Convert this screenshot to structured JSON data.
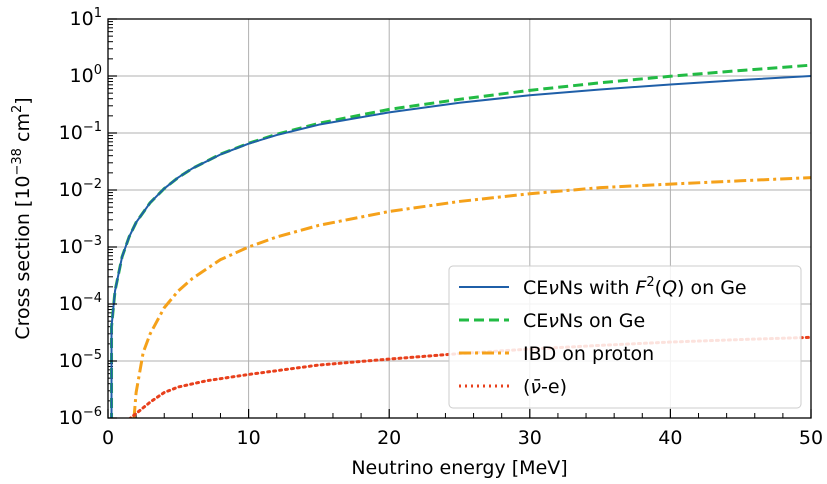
{
  "chart_data": {
    "type": "line",
    "xlabel": "Neutrino energy [MeV]",
    "ylabel": {
      "main": "Cross section [10",
      "exp": "−38",
      "unit": " cm",
      "unit_exp": "2",
      "close": "]"
    },
    "xlim": [
      0,
      50
    ],
    "ylim": [
      1e-06,
      10
    ],
    "yscale": "log",
    "grid": true,
    "legend_position": "lower-right",
    "x_ticks": [
      "0",
      "10",
      "20",
      "30",
      "40",
      "50"
    ],
    "y_ticks": [
      {
        "base": "10",
        "exp": "1"
      },
      {
        "base": "10",
        "exp": "0"
      },
      {
        "base": "10",
        "exp": "−1"
      },
      {
        "base": "10",
        "exp": "−2"
      },
      {
        "base": "10",
        "exp": "−3"
      },
      {
        "base": "10",
        "exp": "−4"
      },
      {
        "base": "10",
        "exp": "−5"
      },
      {
        "base": "10",
        "exp": "−6"
      }
    ],
    "series": [
      {
        "legend": [
          "CE",
          "ν",
          "Ns with ",
          "F",
          "2",
          "(",
          "Q",
          ") on Ge"
        ],
        "color": "#1f5fa8",
        "style": "solid",
        "x": [
          0.25,
          0.5,
          1,
          1.5,
          2,
          3,
          4,
          5,
          6,
          8,
          10,
          12,
          15,
          20,
          25,
          30,
          35,
          40,
          45,
          50
        ],
        "y": [
          4e-05,
          0.00017,
          0.00067,
          0.0015,
          0.0027,
          0.006,
          0.0106,
          0.0166,
          0.0239,
          0.042,
          0.065,
          0.092,
          0.14,
          0.23,
          0.34,
          0.46,
          0.58,
          0.71,
          0.85,
          1.0
        ]
      },
      {
        "legend": [
          "CE",
          "ν",
          "Ns on Ge"
        ],
        "color": "#22bb44",
        "style": "dashed",
        "x": [
          0.25,
          0.5,
          1,
          1.5,
          2,
          3,
          4,
          5,
          6,
          8,
          10,
          12,
          15,
          20,
          25,
          30,
          35,
          40,
          45,
          50
        ],
        "y": [
          4e-05,
          0.00017,
          0.00067,
          0.0015,
          0.0027,
          0.006,
          0.0106,
          0.0166,
          0.0239,
          0.0425,
          0.066,
          0.095,
          0.148,
          0.26,
          0.39,
          0.56,
          0.76,
          0.99,
          1.25,
          1.55
        ]
      },
      {
        "legend": [
          "IBD on proton"
        ],
        "color": "#f5a11a",
        "style": "dashdot",
        "x": [
          1.85,
          2.0,
          2.5,
          3,
          4,
          5,
          6,
          8,
          10,
          12,
          15,
          20,
          25,
          30,
          35,
          40,
          45,
          50
        ],
        "y": [
          1e-06,
          2.8e-06,
          1.4e-05,
          3e-05,
          8.6e-05,
          0.00017,
          0.00028,
          0.0006,
          0.001,
          0.0015,
          0.0024,
          0.0042,
          0.0063,
          0.0086,
          0.011,
          0.0127,
          0.0145,
          0.0165
        ]
      },
      {
        "legend": [
          "(",
          "ν̄",
          "-e)"
        ],
        "color": "#e8401c",
        "style": "dotted",
        "x": [
          1.5,
          2,
          3,
          4,
          5,
          7,
          10,
          15,
          20,
          25,
          30,
          35,
          40,
          45,
          50
        ],
        "y": [
          9.5e-07,
          1.2e-06,
          1.9e-06,
          2.8e-06,
          3.5e-06,
          4.5e-06,
          5.8e-06,
          8.5e-06,
          1.08e-05,
          1.35e-05,
          1.62e-05,
          1.88e-05,
          2.15e-05,
          2.38e-05,
          2.6e-05
        ]
      }
    ]
  }
}
